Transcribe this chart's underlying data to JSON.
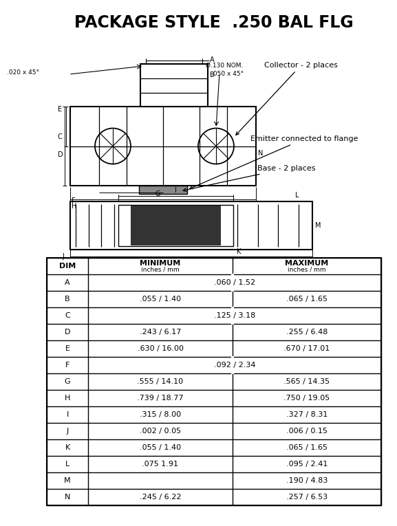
{
  "title": "PACKAGE STYLE  .250 BAL FLG",
  "table_rows": [
    [
      "A",
      ".060 / 1.52",
      ""
    ],
    [
      "B",
      ".055 / 1.40",
      ".065 / 1.65"
    ],
    [
      "C",
      ".125 / 3.18",
      ""
    ],
    [
      "D",
      ".243 / 6.17",
      ".255 / 6.48"
    ],
    [
      "E",
      ".630 / 16.00",
      ".670 / 17.01"
    ],
    [
      "F",
      ".092 / 2.34",
      ""
    ],
    [
      "G",
      ".555 / 14.10",
      ".565 / 14.35"
    ],
    [
      "H",
      ".739 / 18.77",
      ".750 / 19.05"
    ],
    [
      "I",
      ".315 / 8.00",
      ".327 / 8.31"
    ],
    [
      "J",
      ".002 / 0.05",
      ".006 / 0.15"
    ],
    [
      "K",
      ".055 / 1.40",
      ".065 / 1.65"
    ],
    [
      "L",
      ".075 1.91",
      ".095 / 2.41"
    ],
    [
      "M",
      "",
      ".190 / 4.83"
    ],
    [
      "N",
      ".245 / 6.22",
      ".257 / 6.53"
    ]
  ],
  "merged_rows": [
    0,
    2,
    5
  ],
  "ann_collector": "Collector - 2 places",
  "ann_emitter": "Emitter connected to flange",
  "ann_base": "Base - 2 places",
  "ann_020": ".020 x 45°",
  "ann_130": "Ø.130 NOM.",
  "ann_050": ".050 x 45°",
  "bg_color": "#ffffff",
  "line_color": "#000000",
  "text_color": "#000000"
}
